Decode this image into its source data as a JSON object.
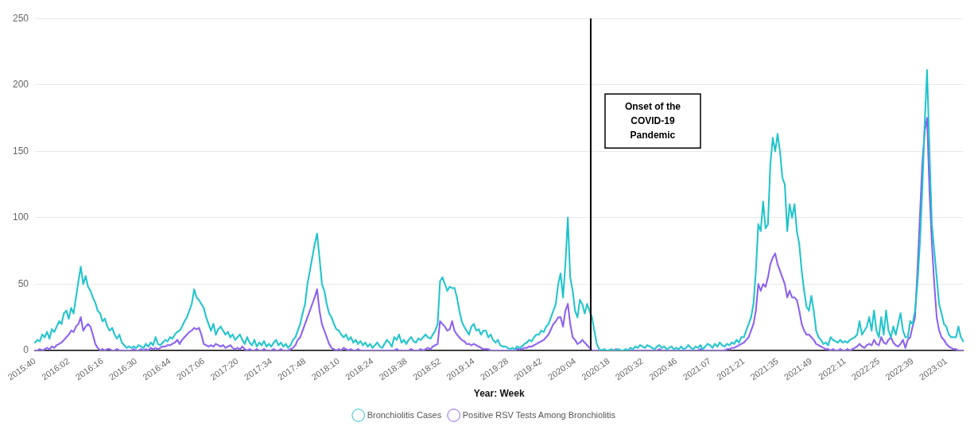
{
  "chart_data": {
    "type": "line",
    "xlabel": "Year: Week",
    "categories": [
      "2015:40",
      null,
      null,
      null,
      null,
      null,
      null,
      null,
      null,
      null,
      null,
      null,
      null,
      null,
      "2016:02",
      null,
      null,
      null,
      null,
      null,
      null,
      null,
      null,
      null,
      null,
      null,
      null,
      null,
      "2016:16",
      null,
      null,
      null,
      null,
      null,
      null,
      null,
      null,
      null,
      null,
      null,
      null,
      null,
      "2016:30",
      null,
      null,
      null,
      null,
      null,
      null,
      null,
      null,
      null,
      null,
      null,
      null,
      null,
      "2016:44",
      null,
      null,
      null,
      null,
      null,
      null,
      null,
      null,
      null,
      null,
      null,
      null,
      null,
      "2017:06",
      null,
      null,
      null,
      null,
      null,
      null,
      null,
      null,
      null,
      null,
      null,
      null,
      null,
      "2017:20",
      null,
      null,
      null,
      null,
      null,
      null,
      null,
      null,
      null,
      null,
      null,
      null,
      null,
      "2017:34",
      null,
      null,
      null,
      null,
      null,
      null,
      null,
      null,
      null,
      null,
      null,
      null,
      null,
      "2017:48",
      null,
      null,
      null,
      null,
      null,
      null,
      null,
      null,
      null,
      null,
      null,
      null,
      null,
      "2018:10",
      null,
      null,
      null,
      null,
      null,
      null,
      null,
      null,
      null,
      null,
      null,
      null,
      null,
      "2018:24",
      null,
      null,
      null,
      null,
      null,
      null,
      null,
      null,
      null,
      null,
      null,
      null,
      null,
      "2018:38",
      null,
      null,
      null,
      null,
      null,
      null,
      null,
      null,
      null,
      null,
      null,
      null,
      null,
      "2018:52",
      null,
      null,
      null,
      null,
      null,
      null,
      null,
      null,
      null,
      null,
      null,
      null,
      null,
      "2019:14",
      null,
      null,
      null,
      null,
      null,
      null,
      null,
      null,
      null,
      null,
      null,
      null,
      null,
      "2019:28",
      null,
      null,
      null,
      null,
      null,
      null,
      null,
      null,
      null,
      null,
      null,
      null,
      null,
      "2019:42",
      null,
      null,
      null,
      null,
      null,
      null,
      null,
      null,
      null,
      null,
      null,
      null,
      null,
      "2020:04",
      null,
      null,
      null,
      null,
      null,
      null,
      null,
      null,
      null,
      null,
      null,
      null,
      null,
      "2020:18",
      null,
      null,
      null,
      null,
      null,
      null,
      null,
      null,
      null,
      null,
      null,
      null,
      null,
      "2020:32",
      null,
      null,
      null,
      null,
      null,
      null,
      null,
      null,
      null,
      null,
      null,
      null,
      null,
      "2020:46",
      null,
      null,
      null,
      null,
      null,
      null,
      null,
      null,
      null,
      null,
      null,
      null,
      null,
      "2021:07",
      null,
      null,
      null,
      null,
      null,
      null,
      null,
      null,
      null,
      null,
      null,
      null,
      null,
      "2021:21",
      null,
      null,
      null,
      null,
      null,
      null,
      null,
      null,
      null,
      null,
      null,
      null,
      null,
      "2021:35",
      null,
      null,
      null,
      null,
      null,
      null,
      null,
      null,
      null,
      null,
      null,
      null,
      null,
      "2021:49",
      null,
      null,
      null,
      null,
      null,
      null,
      null,
      null,
      null,
      null,
      null,
      null,
      null,
      "2022:11",
      null,
      null,
      null,
      null,
      null,
      null,
      null,
      null,
      null,
      null,
      null,
      null,
      null,
      "2022:25",
      null,
      null,
      null,
      null,
      null,
      null,
      null,
      null,
      null,
      null,
      null,
      null,
      null,
      "2022:39",
      null,
      null,
      null,
      null,
      null,
      null,
      null,
      null,
      null,
      null,
      null,
      null,
      null,
      "2023:01",
      null,
      null,
      null,
      null,
      null,
      null,
      null
    ],
    "series": [
      {
        "name": "Bronchiolitis Cases",
        "color": "#1cc3cb",
        "values": [
          6,
          8,
          7,
          12,
          10,
          14,
          9,
          16,
          14,
          18,
          22,
          20,
          28,
          30,
          24,
          32,
          28,
          40,
          52,
          63,
          50,
          56,
          48,
          45,
          40,
          36,
          30,
          28,
          22,
          24,
          18,
          15,
          17,
          12,
          9,
          12,
          6,
          4,
          2,
          3,
          2,
          3,
          2,
          4,
          3,
          2,
          5,
          3,
          6,
          4,
          10,
          5,
          4,
          6,
          8,
          7,
          10,
          9,
          12,
          14,
          15,
          18,
          22,
          25,
          30,
          35,
          46,
          40,
          38,
          35,
          32,
          25,
          20,
          15,
          20,
          12,
          16,
          18,
          15,
          12,
          14,
          10,
          12,
          8,
          10,
          12,
          8,
          5,
          10,
          6,
          4,
          8,
          3,
          6,
          4,
          7,
          3,
          5,
          3,
          6,
          8,
          4,
          6,
          3,
          5,
          2,
          4,
          8,
          10,
          15,
          20,
          28,
          35,
          50,
          60,
          70,
          80,
          88,
          70,
          50,
          45,
          35,
          28,
          25,
          20,
          16,
          15,
          12,
          10,
          12,
          8,
          10,
          6,
          8,
          5,
          7,
          4,
          6,
          3,
          5,
          2,
          4,
          6,
          3,
          2,
          5,
          8,
          6,
          3,
          10,
          8,
          12,
          6,
          8,
          5,
          8,
          10,
          7,
          6,
          9,
          8,
          10,
          12,
          10,
          9,
          12,
          15,
          20,
          52,
          55,
          50,
          45,
          48,
          47,
          47,
          40,
          30,
          22,
          18,
          15,
          12,
          18,
          20,
          15,
          16,
          12,
          15,
          15,
          10,
          12,
          8,
          6,
          8,
          4,
          3,
          3,
          2,
          1,
          2,
          1,
          3,
          2,
          3,
          5,
          6,
          8,
          7,
          10,
          12,
          12,
          15,
          14,
          18,
          20,
          25,
          30,
          35,
          50,
          58,
          40,
          65,
          100,
          55,
          45,
          30,
          25,
          38,
          35,
          28,
          35,
          30,
          25,
          15,
          5,
          1,
          0,
          1,
          0,
          0,
          1,
          0,
          0,
          1,
          0,
          0,
          1,
          0,
          2,
          1,
          3,
          2,
          4,
          3,
          2,
          4,
          3,
          2,
          1,
          3,
          4,
          2,
          3,
          1,
          2,
          3,
          1,
          2,
          1,
          3,
          1,
          2,
          4,
          2,
          1,
          3,
          2,
          4,
          1,
          3,
          5,
          4,
          2,
          5,
          3,
          6,
          4,
          3,
          5,
          4,
          6,
          5,
          8,
          6,
          10,
          10,
          15,
          20,
          25,
          35,
          60,
          95,
          90,
          112,
          92,
          95,
          140,
          160,
          150,
          163,
          150,
          130,
          125,
          90,
          110,
          100,
          110,
          90,
          80,
          60,
          45,
          33,
          30,
          41,
          30,
          15,
          10,
          8,
          5,
          6,
          4,
          10,
          8,
          7,
          6,
          8,
          6,
          7,
          6,
          8,
          9,
          10,
          12,
          22,
          12,
          15,
          18,
          25,
          15,
          30,
          15,
          10,
          25,
          12,
          30,
          15,
          10,
          18,
          12,
          20,
          28,
          15,
          10,
          10,
          22,
          20,
          30,
          50,
          80,
          120,
          170,
          211,
          150,
          95,
          75,
          55,
          35,
          28,
          20,
          18,
          12,
          10,
          10,
          10,
          18,
          10,
          7
        ]
      },
      {
        "name": "Positive RSV Tests Among Bronchiolitis",
        "color": "#8a5cf0",
        "values": [
          0,
          0,
          1,
          0,
          1,
          2,
          1,
          3,
          2,
          4,
          5,
          6,
          8,
          10,
          12,
          15,
          14,
          18,
          20,
          25,
          15,
          18,
          20,
          18,
          12,
          5,
          2,
          0,
          1,
          0,
          1,
          1,
          0,
          0,
          1,
          0,
          0,
          0,
          0,
          0,
          0,
          1,
          0,
          0,
          1,
          0,
          1,
          0,
          2,
          1,
          2,
          1,
          2,
          3,
          3,
          4,
          4,
          5,
          6,
          8,
          5,
          8,
          10,
          12,
          14,
          15,
          17,
          16,
          17,
          12,
          5,
          4,
          3,
          4,
          3,
          5,
          4,
          3,
          4,
          2,
          3,
          4,
          2,
          1,
          2,
          1,
          3,
          1,
          0,
          1,
          0,
          0,
          1,
          0,
          0,
          1,
          0,
          0,
          0,
          1,
          0,
          0,
          1,
          0,
          0,
          0,
          1,
          2,
          4,
          8,
          10,
          15,
          20,
          25,
          30,
          35,
          40,
          46,
          30,
          20,
          15,
          10,
          5,
          2,
          1,
          0,
          1,
          0,
          2,
          1,
          0,
          1,
          0,
          0,
          1,
          0,
          0,
          0,
          0,
          0,
          0,
          0,
          0,
          0,
          0,
          0,
          0,
          0,
          0,
          0,
          1,
          0,
          0,
          0,
          0,
          0,
          1,
          0,
          0,
          0,
          1,
          0,
          1,
          2,
          1,
          3,
          4,
          5,
          22,
          20,
          18,
          15,
          16,
          22,
          15,
          12,
          10,
          8,
          7,
          5,
          5,
          4,
          5,
          4,
          3,
          2,
          1,
          1,
          1,
          0,
          0,
          0,
          0,
          0,
          0,
          0,
          0,
          0,
          0,
          0,
          1,
          1,
          1,
          2,
          2,
          3,
          3,
          4,
          5,
          6,
          7,
          8,
          10,
          12,
          16,
          20,
          22,
          25,
          25,
          18,
          30,
          35,
          20,
          10,
          8,
          5,
          6,
          8,
          6,
          4,
          2,
          0,
          0,
          0,
          0,
          0,
          0,
          0,
          0,
          0,
          0,
          1,
          0,
          0,
          0,
          0,
          0,
          0,
          0,
          0,
          0,
          0,
          0,
          0,
          0,
          0,
          0,
          0,
          0,
          1,
          0,
          0,
          0,
          0,
          0,
          0,
          0,
          0,
          0,
          0,
          0,
          0,
          0,
          0,
          0,
          0,
          1,
          0,
          0,
          0,
          0,
          0,
          0,
          0,
          0,
          0,
          0,
          1,
          1,
          2,
          2,
          3,
          4,
          5,
          6,
          8,
          10,
          15,
          20,
          30,
          50,
          45,
          50,
          48,
          55,
          65,
          70,
          73,
          65,
          60,
          55,
          50,
          40,
          45,
          40,
          40,
          38,
          30,
          20,
          15,
          12,
          12,
          10,
          8,
          5,
          4,
          3,
          2,
          1,
          1,
          0,
          1,
          0,
          0,
          1,
          0,
          0,
          1,
          0,
          1,
          2,
          3,
          5,
          3,
          2,
          4,
          5,
          4,
          8,
          5,
          4,
          10,
          6,
          5,
          8,
          10,
          6,
          4,
          3,
          5,
          8,
          2,
          8,
          10,
          18,
          25,
          60,
          100,
          140,
          165,
          175,
          120,
          80,
          50,
          25,
          15,
          10,
          8,
          5,
          3,
          2,
          1,
          1,
          0,
          0,
          0
        ]
      }
    ],
    "ylim": [
      0,
      250
    ],
    "yticks": [
      0,
      50,
      100,
      150,
      200,
      250
    ],
    "grid": "y",
    "legend": "bottom",
    "marker": "circle",
    "line_style": "solid",
    "annotations": [
      "Onset of the COVID-19 Pandemic"
    ]
  }
}
